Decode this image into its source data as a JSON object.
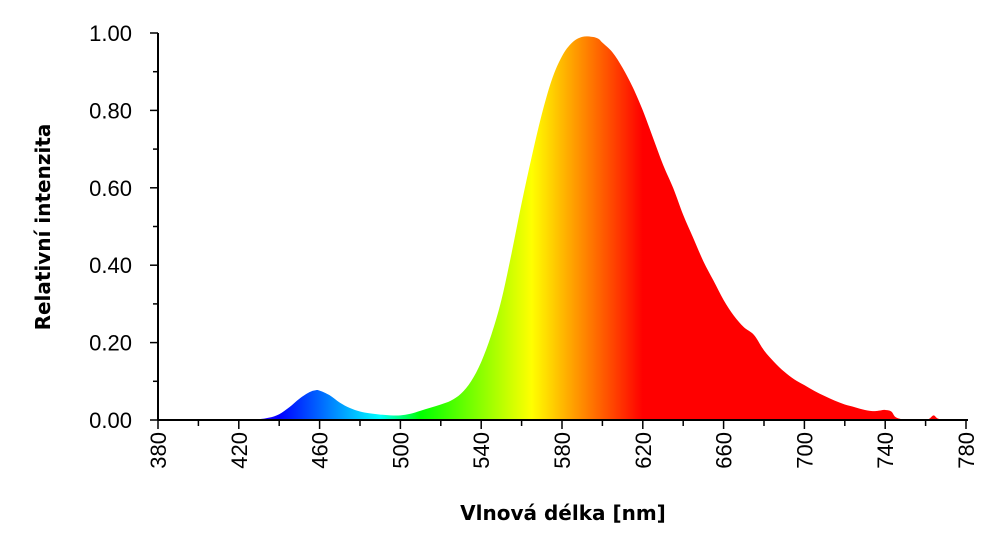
{
  "chart_data": {
    "type": "area",
    "xlabel": "Vlnová délka [nm]",
    "ylabel": "Relativní intenzita",
    "xlim": [
      380,
      780
    ],
    "ylim": [
      0,
      1
    ],
    "x_ticks": [
      "380",
      "420",
      "460",
      "500",
      "540",
      "580",
      "620",
      "660",
      "700",
      "740",
      "780"
    ],
    "y_ticks": [
      "0.00",
      "0.20",
      "0.40",
      "0.60",
      "0.80",
      "1.00"
    ],
    "grid": false,
    "legend": "none",
    "fill": "spectral colour gradient",
    "series": [
      {
        "x": [
          380,
          425,
          430,
          435,
          440,
          445,
          450,
          455,
          458,
          460,
          465,
          470,
          475,
          480,
          485,
          490,
          495,
          500,
          505,
          510,
          515,
          520,
          525,
          530,
          535,
          540,
          545,
          550,
          555,
          560,
          565,
          570,
          575,
          580,
          585,
          590,
          595,
          598,
          600,
          605,
          610,
          615,
          620,
          625,
          630,
          635,
          640,
          645,
          650,
          655,
          660,
          665,
          670,
          675,
          680,
          685,
          690,
          695,
          700,
          705,
          710,
          715,
          720,
          725,
          730,
          735,
          740,
          743,
          745,
          748,
          750,
          755,
          760,
          762,
          764,
          766,
          770,
          780
        ],
        "y": [
          0,
          0,
          0.002,
          0.006,
          0.015,
          0.033,
          0.055,
          0.072,
          0.077,
          0.076,
          0.064,
          0.045,
          0.031,
          0.022,
          0.017,
          0.014,
          0.012,
          0.012,
          0.016,
          0.024,
          0.032,
          0.04,
          0.05,
          0.068,
          0.1,
          0.15,
          0.22,
          0.31,
          0.43,
          0.56,
          0.68,
          0.79,
          0.88,
          0.94,
          0.975,
          0.99,
          0.99,
          0.985,
          0.975,
          0.95,
          0.91,
          0.86,
          0.8,
          0.73,
          0.66,
          0.6,
          0.53,
          0.47,
          0.41,
          0.36,
          0.31,
          0.27,
          0.24,
          0.22,
          0.18,
          0.15,
          0.125,
          0.105,
          0.09,
          0.075,
          0.062,
          0.05,
          0.04,
          0.033,
          0.026,
          0.023,
          0.026,
          0.022,
          0.008,
          0.002,
          0,
          0,
          0,
          0.004,
          0.012,
          0.004,
          0,
          0
        ]
      }
    ]
  }
}
